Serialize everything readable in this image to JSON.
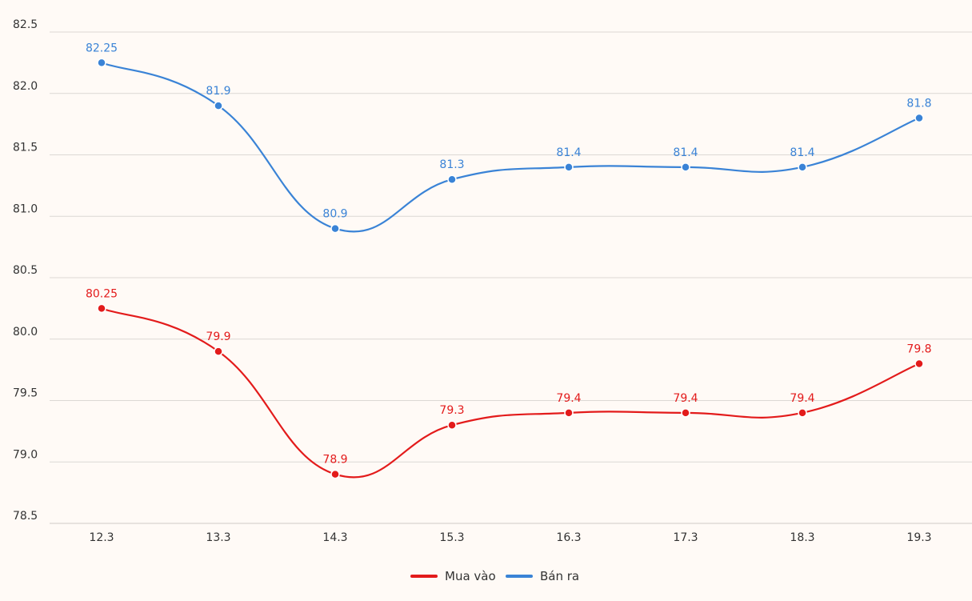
{
  "chart_data": {
    "type": "line",
    "title": "",
    "xlabel": "",
    "ylabel": "",
    "categories": [
      "12.3",
      "13.3",
      "14.3",
      "15.3",
      "16.3",
      "17.3",
      "18.3",
      "19.3"
    ],
    "ylim": [
      78.5,
      82.5
    ],
    "yticks": [
      "82.5",
      "82.0",
      "81.5",
      "81.0",
      "80.5",
      "80.0",
      "79.5",
      "79.0",
      "78.5"
    ],
    "grid": true,
    "legend_position": "bottom-center",
    "series": [
      {
        "name": "Mua vào",
        "color": "#e31b1b",
        "values": [
          80.25,
          79.9,
          78.9,
          79.3,
          79.4,
          79.4,
          79.4,
          79.8
        ],
        "labels": [
          "80.25",
          "79.9",
          "78.9",
          "79.3",
          "79.4",
          "79.4",
          "79.4",
          "79.8"
        ]
      },
      {
        "name": "Bán ra",
        "color": "#3a83d6",
        "values": [
          82.25,
          81.9,
          80.9,
          81.3,
          81.4,
          81.4,
          81.4,
          81.8
        ],
        "labels": [
          "82.25",
          "81.9",
          "80.9",
          "81.3",
          "81.4",
          "81.4",
          "81.4",
          "81.8"
        ]
      }
    ]
  }
}
